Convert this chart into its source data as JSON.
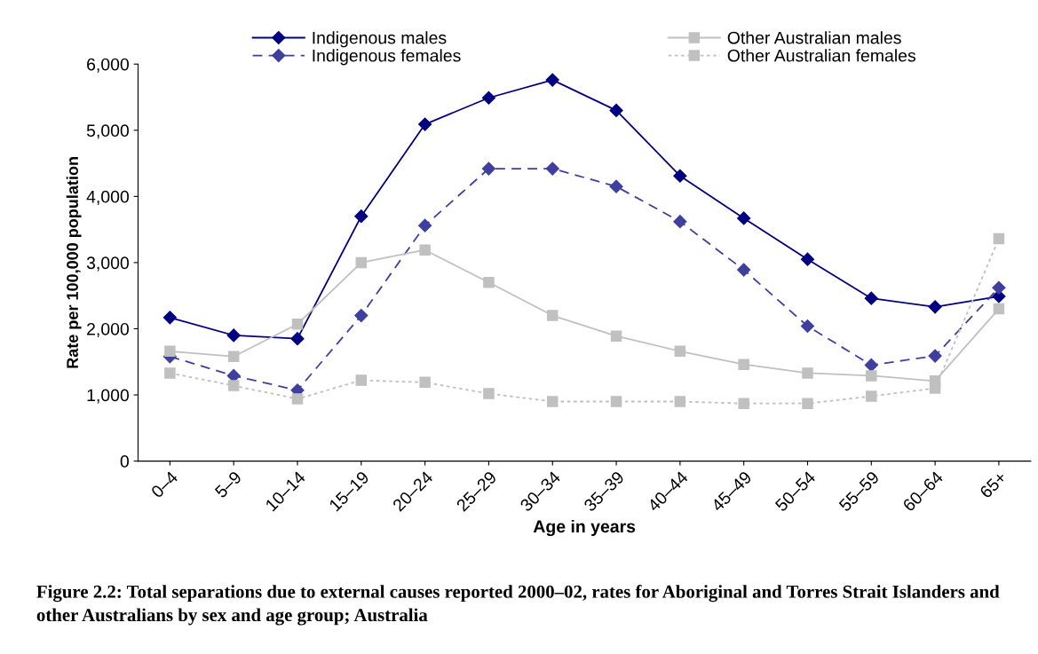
{
  "chart_data": {
    "type": "line",
    "xlabel": "Age in years",
    "ylabel": "Rate per 100,000 population",
    "categories": [
      "0–4",
      "5–9",
      "10–14",
      "15–19",
      "20–24",
      "25–29",
      "30–34",
      "35–39",
      "40–44",
      "45–49",
      "50–54",
      "55–59",
      "60–64",
      "65+"
    ],
    "series": [
      {
        "name": "Indigenous males",
        "color": "#000080",
        "marker": "diamond",
        "line_style": "solid",
        "values": [
          2170,
          1900,
          1850,
          3700,
          5090,
          5490,
          5760,
          5300,
          4310,
          3670,
          3050,
          2460,
          2330,
          2490
        ]
      },
      {
        "name": "Indigenous females",
        "color": "#3f3f9f",
        "marker": "diamond",
        "line_style": "dashed",
        "values": [
          1580,
          1290,
          1070,
          2200,
          3560,
          4420,
          4420,
          4150,
          3620,
          2890,
          2040,
          1450,
          1590,
          2620
        ]
      },
      {
        "name": "Other Australian males",
        "color": "#c0c0c0",
        "marker": "square",
        "line_style": "solid",
        "values": [
          1660,
          1580,
          2070,
          3000,
          3190,
          2700,
          2200,
          1890,
          1660,
          1460,
          1330,
          1290,
          1210,
          2300
        ]
      },
      {
        "name": "Other Australian females",
        "color": "#c0c0c0",
        "marker": "square",
        "line_style": "dotted",
        "values": [
          1330,
          1140,
          940,
          1220,
          1190,
          1020,
          900,
          900,
          900,
          870,
          870,
          980,
          1100,
          3360
        ]
      }
    ],
    "ylim": [
      0,
      6000
    ],
    "yticks": [
      {
        "value": 0,
        "label": "0"
      },
      {
        "value": 1000,
        "label": "1,000"
      },
      {
        "value": 2000,
        "label": "2,000"
      },
      {
        "value": 3000,
        "label": "3,000"
      },
      {
        "value": 4000,
        "label": "4,000"
      },
      {
        "value": 5000,
        "label": "5,000"
      },
      {
        "value": 6000,
        "label": "6,000"
      }
    ],
    "grid": false,
    "legend": "top",
    "annotations": [
      "Figure 2.2: Total separations due to external causes reported 2000–02, rates for Aboriginal and Torres Strait Islanders and other Australians by sex and age group; Australia"
    ]
  }
}
